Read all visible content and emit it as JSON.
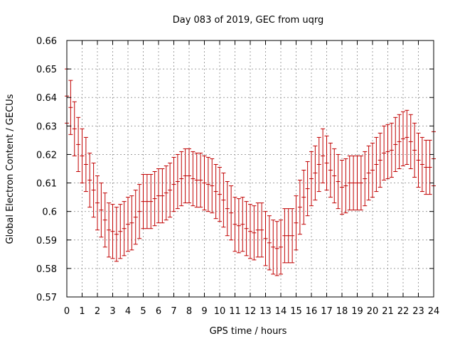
{
  "chart_data": {
    "type": "scatter",
    "title": "Day 083 of 2019, GEC from uqrg",
    "xlabel": "GPS time / hours",
    "ylabel": "Global Electron Content / GECUs",
    "xlim": [
      0,
      24
    ],
    "ylim": [
      0.57,
      0.66
    ],
    "xticks": [
      0,
      1,
      2,
      3,
      4,
      5,
      6,
      7,
      8,
      9,
      10,
      11,
      12,
      13,
      14,
      15,
      16,
      17,
      18,
      19,
      20,
      21,
      22,
      23,
      24
    ],
    "xtick_labels": [
      "0",
      "1",
      "2",
      "3",
      "4",
      "5",
      "6",
      "7",
      "8",
      "9",
      "10",
      "11",
      "12",
      "13",
      "14",
      "15",
      "16",
      "17",
      "18",
      "19",
      "20",
      "21",
      "22",
      "23",
      "24"
    ],
    "yticks": [
      0.57,
      0.58,
      0.59,
      0.6,
      0.61,
      0.62,
      0.63,
      0.64,
      0.65,
      0.66
    ],
    "ytick_labels": [
      "0.57",
      "0.58",
      "0.59",
      "0.6",
      "0.61",
      "0.62",
      "0.63",
      "0.64",
      "0.65",
      "0.66"
    ],
    "grid": true,
    "series_color": "#c00000",
    "error_half_width": 0.0095,
    "x": [
      0,
      0.25,
      0.5,
      0.75,
      1,
      1.25,
      1.5,
      1.75,
      2,
      2.25,
      2.5,
      2.75,
      3,
      3.25,
      3.5,
      3.75,
      4,
      4.25,
      4.5,
      4.75,
      5,
      5.25,
      5.5,
      5.75,
      6,
      6.25,
      6.5,
      6.75,
      7,
      7.25,
      7.5,
      7.75,
      8,
      8.25,
      8.5,
      8.75,
      9,
      9.25,
      9.5,
      9.75,
      10,
      10.25,
      10.5,
      10.75,
      11,
      11.25,
      11.5,
      11.75,
      12,
      12.25,
      12.5,
      12.75,
      13,
      13.25,
      13.5,
      13.75,
      14,
      14.25,
      14.5,
      14.75,
      15,
      15.25,
      15.5,
      15.75,
      16,
      16.25,
      16.5,
      16.75,
      17,
      17.25,
      17.5,
      17.75,
      18,
      18.25,
      18.5,
      18.75,
      19,
      19.25,
      19.5,
      19.75,
      20,
      20.25,
      20.5,
      20.75,
      21,
      21.25,
      21.5,
      21.75,
      22,
      22.25,
      22.5,
      22.75,
      23,
      23.25,
      23.5,
      23.75,
      24
    ],
    "y": [
      0.6405,
      0.6365,
      0.629,
      0.6235,
      0.6195,
      0.6165,
      0.611,
      0.6075,
      0.603,
      0.6005,
      0.597,
      0.5935,
      0.593,
      0.592,
      0.593,
      0.594,
      0.5955,
      0.596,
      0.598,
      0.6,
      0.6035,
      0.6035,
      0.6035,
      0.6045,
      0.6055,
      0.6055,
      0.6065,
      0.6075,
      0.6095,
      0.6105,
      0.6115,
      0.6125,
      0.6125,
      0.6115,
      0.611,
      0.611,
      0.61,
      0.6095,
      0.609,
      0.607,
      0.606,
      0.604,
      0.601,
      0.5995,
      0.5955,
      0.595,
      0.5955,
      0.594,
      0.593,
      0.5925,
      0.5935,
      0.5935,
      0.5905,
      0.589,
      0.5875,
      0.587,
      0.5875,
      0.5915,
      0.5915,
      0.5915,
      0.596,
      0.6015,
      0.605,
      0.608,
      0.6115,
      0.6135,
      0.6165,
      0.6195,
      0.617,
      0.6145,
      0.6125,
      0.6105,
      0.6085,
      0.609,
      0.61,
      0.61,
      0.61,
      0.61,
      0.6115,
      0.6135,
      0.6145,
      0.6165,
      0.618,
      0.6205,
      0.621,
      0.6215,
      0.6235,
      0.6245,
      0.6255,
      0.626,
      0.6245,
      0.6215,
      0.618,
      0.6165,
      0.6155,
      0.6155,
      0.6185
    ]
  }
}
